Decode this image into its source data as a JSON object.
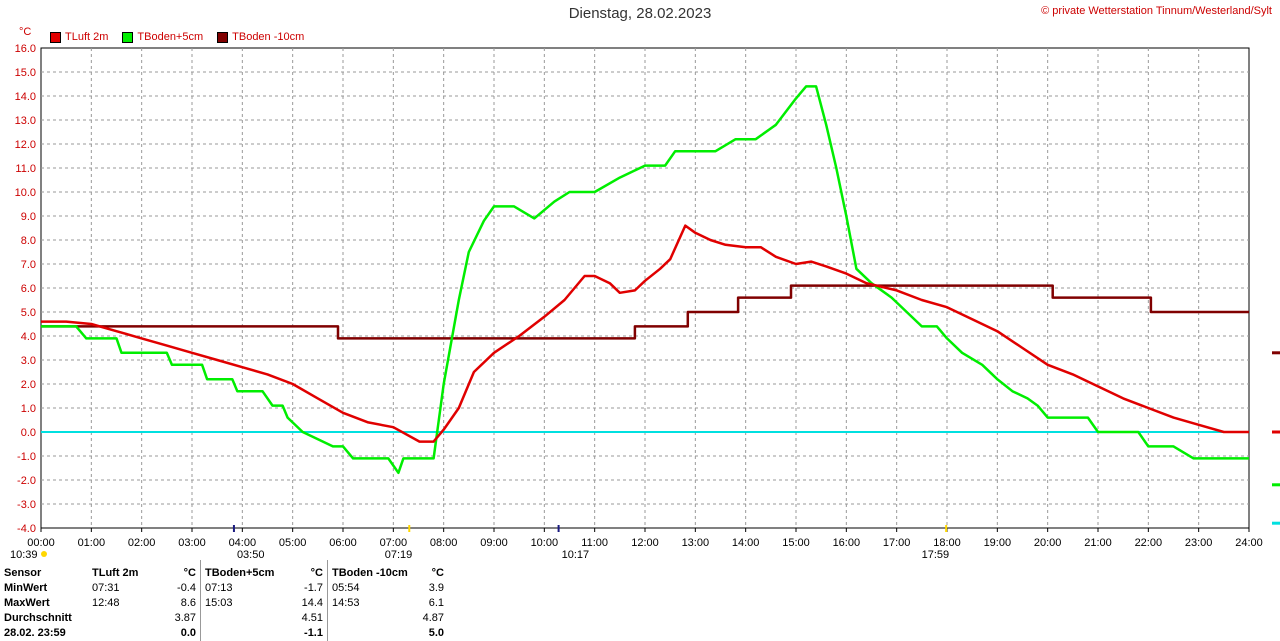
{
  "header": {
    "title": "Dienstag, 28.02.2023",
    "copyright": "© private Wetterstation Tinnum/Westerland/Sylt",
    "unit": "°C"
  },
  "colors": {
    "tluft": "#e00000",
    "tboden5": "#00ee00",
    "tboden10": "#800000",
    "zero_line": "#00e0e0",
    "axis_text": "#cc0000"
  },
  "legend": [
    {
      "label": "TLuft 2m",
      "color": "#e00000"
    },
    {
      "label": "TBoden+5cm",
      "color": "#00ee00"
    },
    {
      "label": "TBoden -10cm",
      "color": "#800000"
    }
  ],
  "sun_markers": {
    "left_time": "10:39",
    "moonrise": "03:50",
    "sunrise": "07:19",
    "moonset": "10:17",
    "sunset": "17:59"
  },
  "chart_data": {
    "type": "line",
    "xlabel": "",
    "ylabel": "°C",
    "xlim": [
      0,
      24
    ],
    "ylim": [
      -4,
      16
    ],
    "y_ticks": [
      "-4.0",
      "-3.0",
      "-2.0",
      "-1.0",
      "0.0",
      "1.0",
      "2.0",
      "3.0",
      "4.0",
      "5.0",
      "6.0",
      "7.0",
      "8.0",
      "9.0",
      "10.0",
      "11.0",
      "12.0",
      "13.0",
      "14.0",
      "15.0",
      "16.0"
    ],
    "x_ticks": [
      "00:00",
      "01:00",
      "02:00",
      "03:00",
      "04:00",
      "05:00",
      "06:00",
      "07:00",
      "08:00",
      "09:00",
      "10:00",
      "11:00",
      "12:00",
      "13:00",
      "14:00",
      "15:00",
      "16:00",
      "17:00",
      "18:00",
      "19:00",
      "20:00",
      "21:00",
      "22:00",
      "23:00",
      "24:00"
    ],
    "grid": true,
    "series": [
      {
        "name": "TLuft 2m",
        "color": "#e00000",
        "x": [
          0,
          0.5,
          1.0,
          1.5,
          2.0,
          2.5,
          3.0,
          3.5,
          4.0,
          4.5,
          5.0,
          5.5,
          6.0,
          6.5,
          7.0,
          7.52,
          7.8,
          8.0,
          8.3,
          8.6,
          9.0,
          9.5,
          10.0,
          10.4,
          10.8,
          11.0,
          11.3,
          11.5,
          11.8,
          12.0,
          12.3,
          12.5,
          12.8,
          13.0,
          13.3,
          13.6,
          14.0,
          14.3,
          14.6,
          15.0,
          15.3,
          15.6,
          16.0,
          16.4,
          17.0,
          17.5,
          18.0,
          18.5,
          19.0,
          19.5,
          20.0,
          20.5,
          21.0,
          21.5,
          22.0,
          22.5,
          23.0,
          23.5,
          24.0
        ],
        "values": [
          4.6,
          4.6,
          4.5,
          4.2,
          3.9,
          3.6,
          3.3,
          3.0,
          2.7,
          2.4,
          2.0,
          1.4,
          0.8,
          0.4,
          0.2,
          -0.4,
          -0.4,
          0.1,
          1.0,
          2.5,
          3.3,
          4.0,
          4.8,
          5.5,
          6.5,
          6.5,
          6.2,
          5.8,
          5.9,
          6.3,
          6.8,
          7.2,
          8.6,
          8.3,
          8.0,
          7.8,
          7.7,
          7.7,
          7.3,
          7.0,
          7.1,
          6.9,
          6.6,
          6.2,
          5.9,
          5.5,
          5.2,
          4.7,
          4.2,
          3.5,
          2.8,
          2.4,
          1.9,
          1.4,
          1.0,
          0.6,
          0.3,
          0.0,
          0.0
        ]
      },
      {
        "name": "TBoden+5cm",
        "color": "#00ee00",
        "x": [
          0,
          0.7,
          0.9,
          1.5,
          1.6,
          2.5,
          2.6,
          3.2,
          3.3,
          3.8,
          3.9,
          4.4,
          4.6,
          4.8,
          4.9,
          5.2,
          5.8,
          6.0,
          6.2,
          6.5,
          6.9,
          7.1,
          7.2,
          7.8,
          8.0,
          8.3,
          8.5,
          8.8,
          9.0,
          9.4,
          9.8,
          10.2,
          10.5,
          11.0,
          11.5,
          12.0,
          12.4,
          12.6,
          13.0,
          13.4,
          13.8,
          14.2,
          14.6,
          15.0,
          15.2,
          15.4,
          15.6,
          15.8,
          16.0,
          16.2,
          16.5,
          16.9,
          17.2,
          17.5,
          17.8,
          18.0,
          18.3,
          18.7,
          19.0,
          19.3,
          19.6,
          19.8,
          20.0,
          20.5,
          20.8,
          21.0,
          21.5,
          21.8,
          22.0,
          22.5,
          22.9,
          23.5,
          24.0
        ],
        "values": [
          4.4,
          4.4,
          3.9,
          3.9,
          3.3,
          3.3,
          2.8,
          2.8,
          2.2,
          2.2,
          1.7,
          1.7,
          1.1,
          1.1,
          0.6,
          0.0,
          -0.6,
          -0.6,
          -1.1,
          -1.1,
          -1.1,
          -1.7,
          -1.1,
          -1.1,
          2.0,
          5.5,
          7.5,
          8.8,
          9.4,
          9.4,
          8.9,
          9.6,
          10.0,
          10.0,
          10.6,
          11.1,
          11.1,
          11.7,
          11.7,
          11.7,
          12.2,
          12.2,
          12.8,
          13.9,
          14.4,
          14.4,
          12.8,
          11.0,
          9.0,
          6.8,
          6.2,
          5.6,
          5.0,
          4.4,
          4.4,
          3.9,
          3.3,
          2.8,
          2.2,
          1.7,
          1.4,
          1.1,
          0.6,
          0.6,
          0.6,
          0.0,
          0.0,
          0.0,
          -0.6,
          -0.6,
          -1.1,
          -1.1,
          -1.1
        ]
      },
      {
        "name": "TBoden -10cm",
        "color": "#800000",
        "x": [
          0,
          5.9,
          5.9,
          11.8,
          11.8,
          12.85,
          12.85,
          13.85,
          13.85,
          14.9,
          14.9,
          20.1,
          20.1,
          22.05,
          22.05,
          24.0
        ],
        "values": [
          4.4,
          4.4,
          3.9,
          3.9,
          4.4,
          4.4,
          5.0,
          5.0,
          5.6,
          5.6,
          6.1,
          6.1,
          5.6,
          5.6,
          5.0,
          5.0
        ]
      }
    ]
  },
  "stats": {
    "headers": {
      "sensor": "Sensor",
      "s1": "TLuft 2m",
      "s2": "TBoden+5cm",
      "s3": "TBoden -10cm",
      "unit": "°C"
    },
    "rows": [
      {
        "label": "MinWert",
        "t1": "07:31",
        "v1": "-0.4",
        "t2": "07:13",
        "v2": "-1.7",
        "t3": "05:54",
        "v3": "3.9"
      },
      {
        "label": "MaxWert",
        "t1": "12:48",
        "v1": "8.6",
        "t2": "15:03",
        "v2": "14.4",
        "t3": "14:53",
        "v3": "6.1"
      },
      {
        "label": "Durchschnitt",
        "t1": "",
        "v1": "3.87",
        "t2": "",
        "v2": "4.51",
        "t3": "",
        "v3": "4.87"
      },
      {
        "label": "28.02. 23:59",
        "t1": "",
        "v1": "0.0",
        "t2": "",
        "v2": "-1.1",
        "t3": "",
        "v3": "5.0"
      }
    ]
  }
}
